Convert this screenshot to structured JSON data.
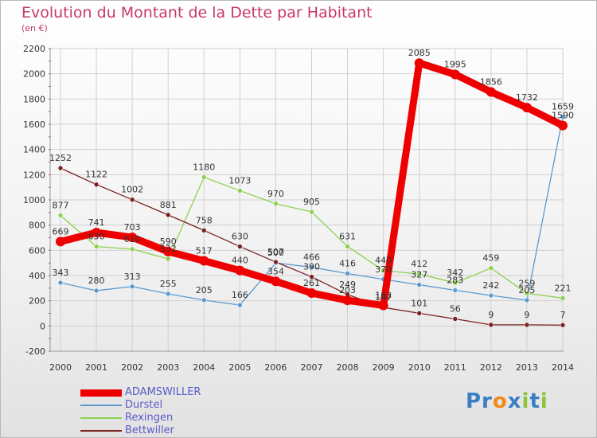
{
  "chart_data": {
    "type": "line",
    "title": "Evolution du Montant de la Dette par Habitant",
    "subtitle": "(en €)",
    "x": [
      "2000",
      "2001",
      "2002",
      "2003",
      "2004",
      "2005",
      "2006",
      "2007",
      "2008",
      "2009",
      "2010",
      "2011",
      "2012",
      "2013",
      "2014"
    ],
    "ylim": [
      -200,
      2200
    ],
    "yticks": [
      -200,
      0,
      200,
      400,
      600,
      800,
      1000,
      1200,
      1400,
      1600,
      1800,
      2000,
      2200
    ],
    "grid": true,
    "legend_position": "bottom-left",
    "series": [
      {
        "name": "ADAMSWILLER",
        "color": "#ee0000",
        "values": [
          669,
          741,
          703,
          590,
          517,
          440,
          354,
          261,
          203,
          163,
          2085,
          1995,
          1856,
          1732,
          1590
        ]
      },
      {
        "name": "Durstel",
        "color": "#5a9ad0",
        "values": [
          343,
          280,
          313,
          255,
          205,
          166,
          500,
          466,
          416,
          370,
          327,
          283,
          242,
          205,
          1659
        ]
      },
      {
        "name": "Rexingen",
        "color": "#8cd050",
        "values": [
          877,
          630,
          610,
          532,
          1180,
          1073,
          970,
          905,
          631,
          440,
          412,
          342,
          459,
          259,
          221
        ]
      },
      {
        "name": "Bettwiller",
        "color": "#7a2020",
        "values": [
          1252,
          1122,
          1002,
          881,
          758,
          630,
          507,
          390,
          249,
          147,
          101,
          56,
          9,
          9,
          7
        ]
      }
    ]
  },
  "logo": {
    "text": [
      "Pr",
      "o",
      "x",
      "i",
      "t",
      "i"
    ]
  }
}
